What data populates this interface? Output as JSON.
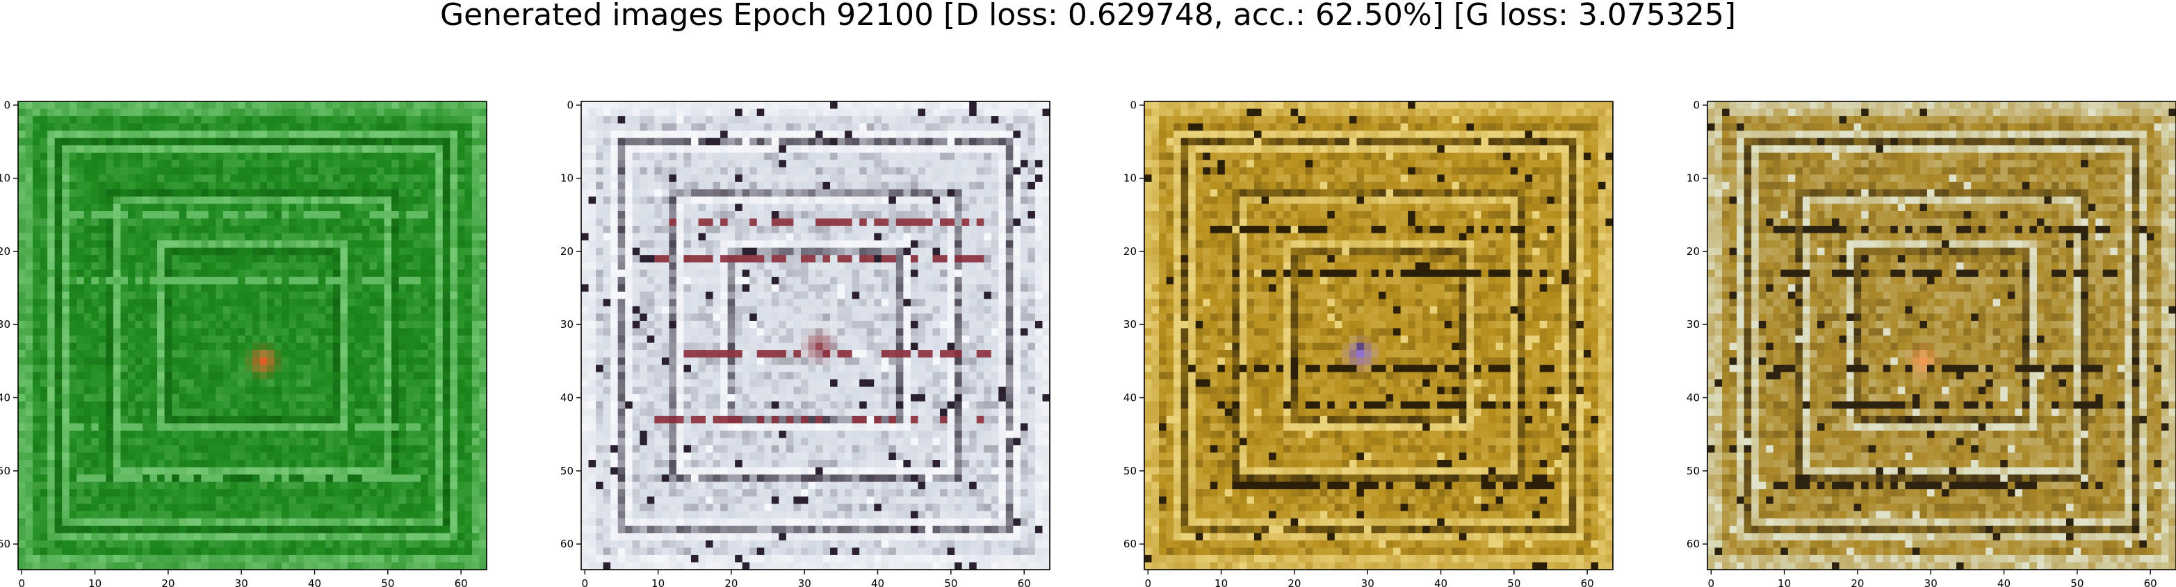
{
  "figure": {
    "title": "Generated images Epoch 92100 [D loss: 0.629748, acc.: 62.50%] [G loss: 3.075325]"
  },
  "chart_data": [
    {
      "type": "heatmap",
      "description_of_content": "generated image",
      "xlim": [
        0,
        63
      ],
      "ylim": [
        63,
        0
      ],
      "x_ticks": [
        0,
        10,
        20,
        30,
        40,
        50,
        60
      ],
      "y_ticks": [
        0,
        10,
        20,
        30,
        40,
        50,
        60
      ],
      "palette": {
        "base": "#1f8a1f",
        "dark": "#0e5f0e",
        "light": "#74c874",
        "accent": "#ff5a2a"
      },
      "style": "green"
    },
    {
      "type": "heatmap",
      "description_of_content": "generated image",
      "xlim": [
        0,
        63
      ],
      "ylim": [
        63,
        0
      ],
      "x_ticks": [
        0,
        10,
        20,
        30,
        40,
        50,
        60
      ],
      "y_ticks": [
        0,
        10,
        20,
        30,
        40,
        50,
        60
      ],
      "palette": {
        "base": "#d7dde6",
        "dark": "#2a2030",
        "light": "#f6f7fb",
        "accent": "#8a2d3a"
      },
      "style": "maze"
    },
    {
      "type": "heatmap",
      "description_of_content": "generated image",
      "xlim": [
        0,
        63
      ],
      "ylim": [
        63,
        0
      ],
      "x_ticks": [
        0,
        10,
        20,
        30,
        40,
        50,
        60
      ],
      "y_ticks": [
        0,
        10,
        20,
        30,
        40,
        50,
        60
      ],
      "palette": {
        "base": "#b8901e",
        "dark": "#2b1f08",
        "light": "#ead27a",
        "accent": "#8a6cf0"
      },
      "style": "gold"
    },
    {
      "type": "heatmap",
      "description_of_content": "generated image",
      "xlim": [
        0,
        63
      ],
      "ylim": [
        63,
        0
      ],
      "x_ticks": [
        0,
        10,
        20,
        30,
        40,
        50,
        60
      ],
      "y_ticks": [
        0,
        10,
        20,
        30,
        40,
        50,
        60
      ],
      "palette": {
        "base": "#ad8a2a",
        "dark": "#2d2210",
        "light": "#dfe2c8",
        "accent": "#ff9a5a"
      },
      "style": "gold2"
    }
  ]
}
